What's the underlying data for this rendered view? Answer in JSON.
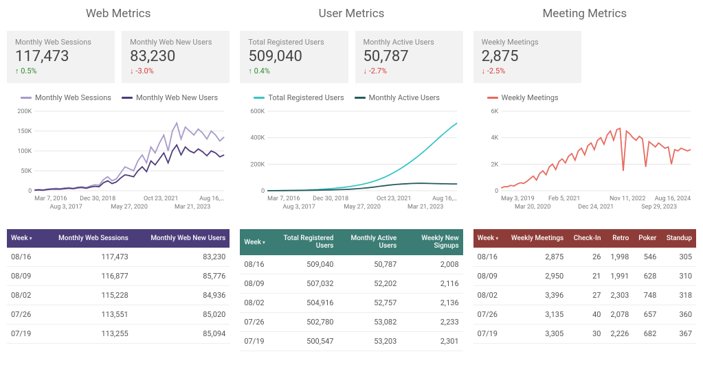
{
  "panels": {
    "web": {
      "title": "Web Metrics",
      "kpis": [
        {
          "label": "Monthly Web Sessions",
          "value": "117,473",
          "delta": "0.5%",
          "dir": "up"
        },
        {
          "label": "Monthly Web New Users",
          "value": "83,230",
          "delta": "-3.0%",
          "dir": "down"
        }
      ],
      "chart": {
        "series": [
          {
            "name": "Monthly Web Sessions",
            "color": "#a79bc9"
          },
          {
            "name": "Monthly Web New Users",
            "color": "#4e3a7a"
          }
        ],
        "y": {
          "min": 0,
          "max": 200000,
          "ticks": [
            "0",
            "50K",
            "100K",
            "150K",
            "200K"
          ]
        },
        "x_labels_top": [
          "Mar 7, 2016",
          "Dec 30, 2018",
          "Oct 23, 2021",
          "Aug 16,…"
        ],
        "x_labels_bottom": [
          "Aug 3, 2017",
          "May 27, 2020",
          "Mar 21, 2023"
        ],
        "data": {
          "sessions": [
            2,
            3,
            2,
            4,
            5,
            6,
            5,
            7,
            8,
            6,
            9,
            10,
            8,
            12,
            15,
            14,
            28,
            35,
            25,
            30,
            45,
            60,
            55,
            50,
            75,
            90,
            70,
            110,
            95,
            120,
            140,
            100,
            150,
            170,
            130,
            160,
            150,
            140,
            155,
            145,
            130,
            150,
            140,
            125,
            135
          ],
          "newusers": [
            1,
            2,
            1,
            3,
            4,
            4,
            4,
            5,
            6,
            5,
            7,
            8,
            6,
            9,
            11,
            10,
            20,
            25,
            18,
            22,
            32,
            40,
            38,
            35,
            50,
            60,
            48,
            75,
            65,
            80,
            95,
            70,
            100,
            115,
            90,
            110,
            100,
            95,
            105,
            98,
            88,
            100,
            95,
            85,
            90
          ]
        },
        "scale": 200,
        "grid_color": "#e5e5e5",
        "axis_color": "#999"
      },
      "table": {
        "header_color": "#4b3c7a",
        "columns": [
          "Week",
          "Monthly Web Sessions",
          "Monthly Web New Users"
        ],
        "rows": [
          [
            "08/16",
            "117,473",
            "83,230"
          ],
          [
            "08/09",
            "116,877",
            "85,776"
          ],
          [
            "08/02",
            "115,228",
            "84,936"
          ],
          [
            "07/26",
            "113,551",
            "85,020"
          ],
          [
            "07/19",
            "113,255",
            "85,094"
          ]
        ]
      }
    },
    "user": {
      "title": "User Metrics",
      "kpis": [
        {
          "label": "Total Registered Users",
          "value": "509,040",
          "delta": "0.4%",
          "dir": "up"
        },
        {
          "label": "Monthly Active Users",
          "value": "50,787",
          "delta": "-2.7%",
          "dir": "down"
        }
      ],
      "chart": {
        "series": [
          {
            "name": "Total Registered Users",
            "color": "#3bc4c4"
          },
          {
            "name": "Monthly Active Users",
            "color": "#2a5a5a"
          }
        ],
        "y": {
          "min": 0,
          "max": 600000,
          "ticks": [
            "0",
            "200K",
            "400K",
            "600K"
          ]
        },
        "x_labels_top": [
          "Mar 7, 2016",
          "Dec 30, 2018",
          "Oct 23, 2021",
          "Aug 16,…"
        ],
        "x_labels_bottom": [
          "Aug 3, 2017",
          "May 27, 2020",
          "Mar 21, 2023"
        ],
        "data": {
          "registered": [
            0,
            0.5,
            1,
            1.5,
            2,
            3,
            4,
            5,
            7,
            9,
            12,
            15,
            18,
            22,
            27,
            33,
            40,
            48,
            58,
            70,
            85,
            102,
            122,
            145,
            170,
            198,
            228,
            260,
            295,
            332,
            370,
            408,
            445,
            480,
            510
          ],
          "active": [
            0,
            0.3,
            0.6,
            1,
            1.3,
            1.8,
            2.3,
            2.8,
            3.5,
            4.2,
            5,
            6,
            7,
            8.5,
            10,
            12,
            15,
            18,
            22,
            27,
            33,
            38,
            43,
            47,
            50,
            53,
            55,
            56,
            56,
            55,
            54,
            53,
            52,
            51,
            51
          ]
        },
        "scale": 600,
        "grid_color": "#e5e5e5",
        "axis_color": "#999"
      },
      "table": {
        "header_color": "#3b7c74",
        "columns": [
          "Week",
          "Total Registered Users",
          "Monthly Active Users",
          "Weekly New Signups"
        ],
        "rows": [
          [
            "08/16",
            "509,040",
            "50,787",
            "2,008"
          ],
          [
            "08/09",
            "507,032",
            "52,202",
            "2,116"
          ],
          [
            "08/02",
            "504,916",
            "52,757",
            "2,136"
          ],
          [
            "07/26",
            "502,780",
            "53,082",
            "2,233"
          ],
          [
            "07/19",
            "500,547",
            "53,203",
            "2,301"
          ]
        ]
      }
    },
    "meeting": {
      "title": "Meeting Metrics",
      "kpis": [
        {
          "label": "Weekly Meetings",
          "value": "2,875",
          "delta": "-2.5%",
          "dir": "down"
        }
      ],
      "kpi_slots": 2,
      "chart": {
        "series": [
          {
            "name": "Weekly Meetings",
            "color": "#e86a5e"
          }
        ],
        "y": {
          "min": 0,
          "max": 6000,
          "ticks": [
            "0",
            "2K",
            "4K",
            "6K"
          ]
        },
        "x_labels_top": [
          "May 3, 2019",
          "Feb 5, 2021",
          "Nov 11, 2022",
          "Aug 16, 2024"
        ],
        "x_labels_bottom": [
          "Mar 20, 2020",
          "Dec 24, 2021",
          "Sep 29, 2023"
        ],
        "data": {
          "meetings": [
            0.2,
            0.3,
            0.3,
            0.4,
            0.35,
            0.5,
            0.6,
            0.55,
            0.7,
            0.9,
            1.1,
            0.8,
            1.3,
            1.5,
            1.2,
            1.8,
            2.0,
            1.6,
            2.2,
            2.4,
            2.1,
            2.6,
            2.8,
            2.3,
            3.0,
            3.2,
            2.7,
            3.4,
            3.6,
            3.1,
            3.8,
            4.0,
            3.5,
            4.2,
            4.5,
            3.8,
            4.6,
            4.7,
            1.5,
            4.5,
            4.3,
            4.0,
            3.8,
            4.1,
            3.9,
            1.8,
            3.7,
            3.5,
            3.3,
            3.6,
            3.4,
            3.2,
            3.3,
            2.0,
            3.1,
            3.0,
            3.2,
            3.1,
            3.0,
            3.1
          ]
        },
        "scale": 6,
        "grid_color": "#e5e5e5",
        "axis_color": "#999"
      },
      "table": {
        "header_color": "#8e3c38",
        "columns": [
          "Week",
          "Weekly Meetings",
          "Check-In",
          "Retro",
          "Poker",
          "Standup"
        ],
        "rows": [
          [
            "08/16",
            "2,875",
            "26",
            "1,998",
            "546",
            "305"
          ],
          [
            "08/09",
            "2,950",
            "21",
            "1,991",
            "628",
            "310"
          ],
          [
            "08/02",
            "3,396",
            "27",
            "2,303",
            "748",
            "318"
          ],
          [
            "07/26",
            "3,135",
            "40",
            "2,078",
            "657",
            "360"
          ],
          [
            "07/19",
            "3,305",
            "30",
            "2,226",
            "682",
            "367"
          ]
        ]
      }
    }
  },
  "sort_indicator": "▾"
}
